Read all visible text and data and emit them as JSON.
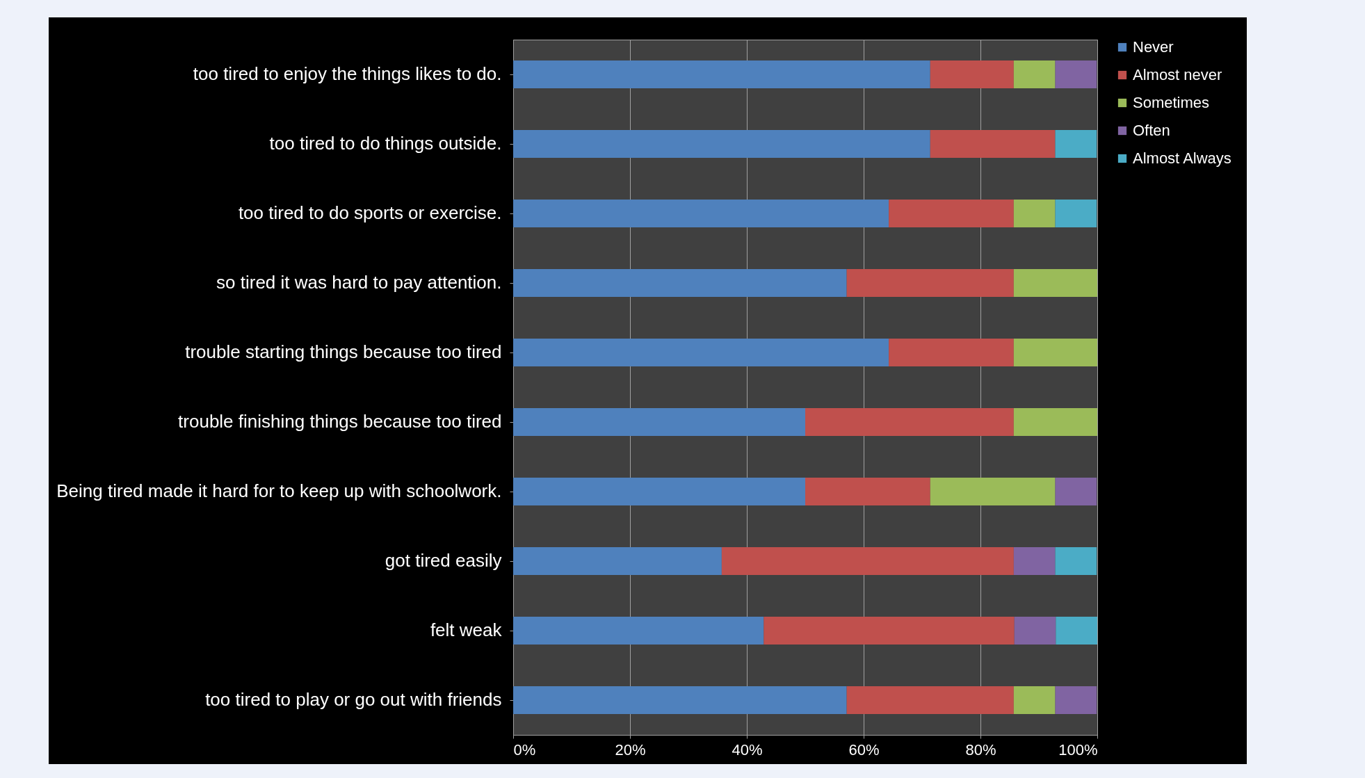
{
  "chart_data": {
    "type": "bar",
    "orientation": "horizontal",
    "stacked": true,
    "categories": [
      "too tired to enjoy the things likes to do.",
      "too tired to do things outside.",
      "too tired to do sports or exercise.",
      "so tired it was hard to pay attention.",
      "trouble starting things because too tired",
      "trouble finishing things because too tired",
      "Being tired made it hard for to keep up with schoolwork.",
      "got tired easily",
      "felt weak",
      "too tired to play or go out with friends"
    ],
    "series": [
      {
        "name": "Never",
        "color": "#4f81bd",
        "values": [
          71.4,
          71.4,
          64.3,
          57.1,
          64.3,
          50,
          50,
          35.7,
          42.9,
          57.1
        ]
      },
      {
        "name": "Almost never",
        "color": "#c0504d",
        "values": [
          14.3,
          21.4,
          21.4,
          28.6,
          21.4,
          35.7,
          21.4,
          50,
          42.9,
          28.6
        ]
      },
      {
        "name": "Sometimes",
        "color": "#9bbb59",
        "values": [
          7.1,
          0,
          7.1,
          14.3,
          14.3,
          14.3,
          21.4,
          0,
          0,
          7.1
        ]
      },
      {
        "name": "Often",
        "color": "#8064a2",
        "values": [
          7.1,
          0,
          0,
          0,
          0,
          0,
          7.1,
          7.1,
          7.1,
          7.1
        ]
      },
      {
        "name": "Almost Always",
        "color": "#4bacc6",
        "values": [
          0,
          7.1,
          7.1,
          0,
          0,
          0,
          0,
          7.1,
          7.1,
          0
        ]
      }
    ],
    "xlim": [
      0,
      100
    ],
    "xticks": [
      {
        "value": 0,
        "label": "0%"
      },
      {
        "value": 20,
        "label": "20%"
      },
      {
        "value": 40,
        "label": "40%"
      },
      {
        "value": 60,
        "label": "60%"
      },
      {
        "value": 80,
        "label": "80%"
      },
      {
        "value": 100,
        "label": "100%"
      }
    ],
    "grid": "x",
    "legend": "right"
  }
}
